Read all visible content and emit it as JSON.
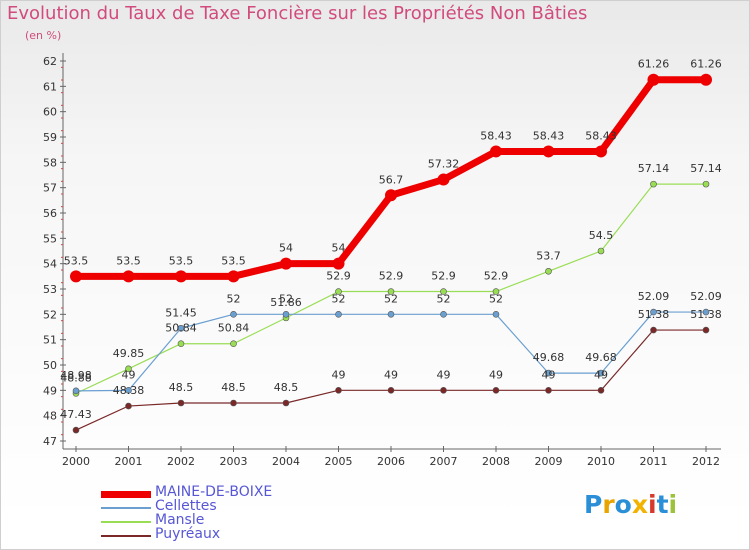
{
  "chart_data": {
    "type": "line",
    "title": "Evolution du Taux de Taxe Foncière sur les Propriétés Non Bâties",
    "ylabel": "(en %)",
    "xlabel": "",
    "x": [
      "2000",
      "2001",
      "2002",
      "2003",
      "2004",
      "2005",
      "2006",
      "2007",
      "2008",
      "2009",
      "2010",
      "2011",
      "2012"
    ],
    "ylim": [
      47,
      62
    ],
    "yticks": [
      47,
      48,
      49,
      50,
      51,
      52,
      53,
      54,
      55,
      56,
      57,
      58,
      59,
      60,
      61,
      62
    ],
    "grid": false,
    "legend_position": "bottom-left",
    "series": [
      {
        "name": "MAINE-DE-BOIXE",
        "color": "#ee0000",
        "values": [
          53.5,
          53.5,
          53.5,
          53.5,
          54,
          54,
          56.7,
          57.32,
          58.43,
          58.43,
          58.43,
          61.26,
          61.26
        ],
        "labels": [
          "53.5",
          "53.5",
          "53.5",
          "53.5",
          "54",
          "54",
          "56.7",
          "57.32",
          "58.43",
          "58.43",
          "58.43",
          "61.26",
          "61.26"
        ]
      },
      {
        "name": "Cellettes",
        "color": "#6a9fd0",
        "values": [
          48.98,
          49,
          51.45,
          52,
          52,
          52,
          52,
          52,
          52,
          49.68,
          49.68,
          52.09,
          52.09
        ],
        "labels": [
          "48.98",
          "49",
          "51.45",
          "52",
          "52",
          "52",
          "52",
          "52",
          "52",
          "49.68",
          "49.68",
          "52.09",
          "52.09"
        ]
      },
      {
        "name": "Mansle",
        "color": "#99dd55",
        "values": [
          48.88,
          49.85,
          50.84,
          50.84,
          51.86,
          52.9,
          52.9,
          52.9,
          52.9,
          53.7,
          54.5,
          57.14,
          57.14
        ],
        "labels": [
          "48.88",
          "49.85",
          "50.84",
          "50.84",
          "51.86",
          "52.9",
          "52.9",
          "52.9",
          "52.9",
          "53.7",
          "54.5",
          "57.14",
          "57.14"
        ]
      },
      {
        "name": "Puyréaux",
        "color": "#7a2828",
        "values": [
          47.43,
          48.38,
          48.5,
          48.5,
          48.5,
          49,
          49,
          49,
          49,
          49,
          49,
          51.38,
          51.38
        ],
        "labels": [
          "47.43",
          "48.38",
          "48.5",
          "48.5",
          "48.5",
          "49",
          "49",
          "49",
          "49",
          "49",
          "49",
          "51.38",
          "51.38"
        ]
      }
    ]
  },
  "branding": {
    "logo_letters": [
      {
        "ch": "P",
        "color": "#2a8fd6"
      },
      {
        "ch": "r",
        "color": "#e8a400"
      },
      {
        "ch": "o",
        "color": "#2a8fd6"
      },
      {
        "ch": "x",
        "color": "#f2b200"
      },
      {
        "ch": "i",
        "color": "#d63a2a"
      },
      {
        "ch": "t",
        "color": "#2a8fd6"
      },
      {
        "ch": "i",
        "color": "#9bc23a"
      }
    ]
  }
}
